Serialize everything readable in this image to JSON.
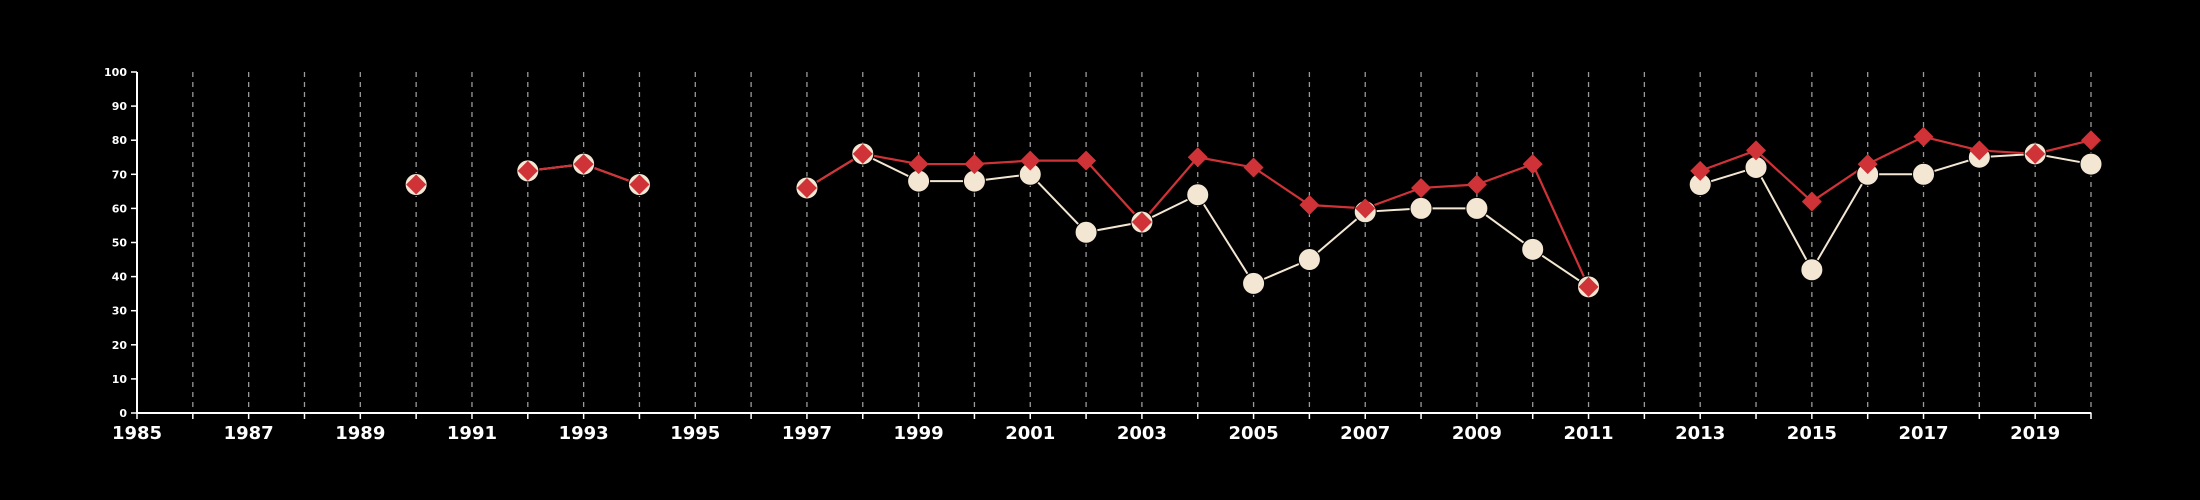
{
  "chart_data": {
    "type": "line",
    "title": "",
    "xlabel": "",
    "ylabel": "",
    "xlim": [
      1985,
      2020
    ],
    "ylim": [
      0,
      100
    ],
    "x_tick_labels": [
      "1985",
      "1987",
      "1989",
      "1991",
      "1993",
      "1995",
      "1997",
      "1999",
      "2001",
      "2003",
      "2005",
      "2007",
      "2009",
      "2011",
      "2013",
      "2015",
      "2017",
      "2019"
    ],
    "y_tick_labels": [
      "0",
      "10",
      "20",
      "30",
      "40",
      "50",
      "60",
      "70",
      "80",
      "90",
      "100"
    ],
    "vertical_grid": "dashed, every year",
    "colors": {
      "background": "#000000",
      "series_a": "#f3e7d3",
      "series_b": "#cf3338",
      "axis": "#ffffff",
      "grid": "#9a9a9a"
    },
    "series": [
      {
        "marker": "circle",
        "color": "#f3e7d3",
        "points": [
          [
            1990,
            67
          ],
          [
            1992,
            71
          ],
          [
            1993,
            73
          ],
          [
            1994,
            67
          ],
          [
            1997,
            66
          ],
          [
            1998,
            76
          ],
          [
            1999,
            68
          ],
          [
            2000,
            68
          ],
          [
            2001,
            70
          ],
          [
            2002,
            53
          ],
          [
            2003,
            56
          ],
          [
            2004,
            64
          ],
          [
            2005,
            38
          ],
          [
            2006,
            45
          ],
          [
            2007,
            59
          ],
          [
            2008,
            60
          ],
          [
            2009,
            60
          ],
          [
            2010,
            48
          ],
          [
            2011,
            37
          ],
          [
            2013,
            67
          ],
          [
            2014,
            72
          ],
          [
            2015,
            42
          ],
          [
            2016,
            70
          ],
          [
            2017,
            70
          ],
          [
            2018,
            75
          ],
          [
            2019,
            76
          ],
          [
            2020,
            73
          ]
        ]
      },
      {
        "marker": "diamond",
        "color": "#cf3338",
        "points": [
          [
            1990,
            67
          ],
          [
            1992,
            71
          ],
          [
            1993,
            73
          ],
          [
            1994,
            67
          ],
          [
            1997,
            66
          ],
          [
            1998,
            76
          ],
          [
            1999,
            73
          ],
          [
            2000,
            73
          ],
          [
            2001,
            74
          ],
          [
            2002,
            74
          ],
          [
            2003,
            56
          ],
          [
            2004,
            75
          ],
          [
            2005,
            72
          ],
          [
            2006,
            61
          ],
          [
            2007,
            60
          ],
          [
            2008,
            66
          ],
          [
            2009,
            67
          ],
          [
            2010,
            73
          ],
          [
            2011,
            37
          ],
          [
            2013,
            71
          ],
          [
            2014,
            77
          ],
          [
            2015,
            62
          ],
          [
            2016,
            73
          ],
          [
            2017,
            81
          ],
          [
            2018,
            77
          ],
          [
            2019,
            76
          ],
          [
            2020,
            80
          ]
        ]
      }
    ]
  }
}
